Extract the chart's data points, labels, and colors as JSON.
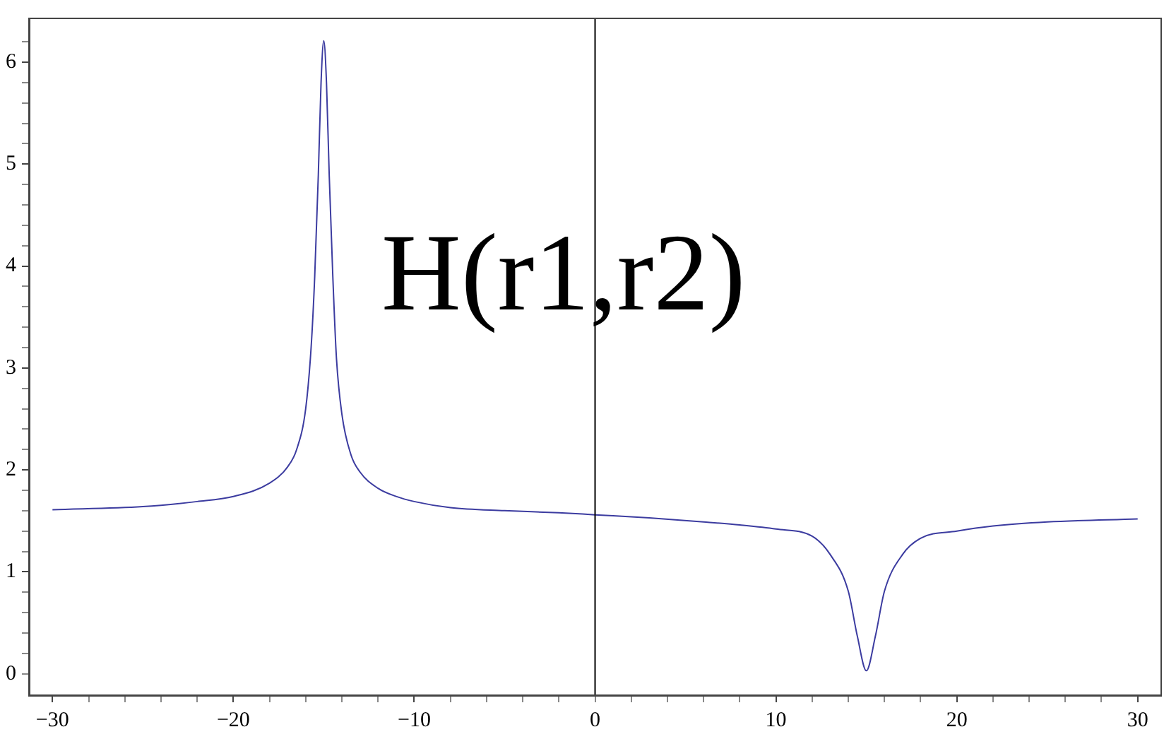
{
  "chart_data": {
    "type": "line",
    "annotations": [
      "H(r1,r2)"
    ],
    "x": [
      -30,
      -25,
      -22,
      -20,
      -18,
      -17,
      -16.5,
      -16,
      -15.7,
      -15.5,
      -15.3,
      -15.15,
      -15,
      -14.85,
      -14.7,
      -14.5,
      -14.3,
      -14,
      -13.5,
      -13,
      -12,
      -11,
      -10,
      -8,
      -5,
      -2,
      0,
      3,
      6,
      8,
      10,
      12,
      13,
      14,
      14.5,
      15,
      15.5,
      16,
      17,
      18,
      20,
      22,
      25,
      30
    ],
    "series": [
      {
        "color": "#3c3ca0",
        "values": [
          1.61,
          1.64,
          1.69,
          1.74,
          1.87,
          2.03,
          2.2,
          2.6,
          3.2,
          3.9,
          4.9,
          5.8,
          6.21,
          5.8,
          4.9,
          3.9,
          3.1,
          2.55,
          2.15,
          1.98,
          1.82,
          1.74,
          1.69,
          1.63,
          1.6,
          1.58,
          1.56,
          1.53,
          1.49,
          1.46,
          1.42,
          1.35,
          1.17,
          0.81,
          0.37,
          0.03,
          0.37,
          0.81,
          1.17,
          1.33,
          1.4,
          1.45,
          1.49,
          1.52
        ]
      }
    ],
    "xlim": [
      -31.3,
      31.3
    ],
    "ylim": [
      -0.21,
      6.43
    ],
    "xticks": [
      -30,
      {
        "value": -28,
        "label": null
      },
      {
        "value": -26,
        "label": null
      },
      {
        "value": -24,
        "label": null
      },
      {
        "value": -22,
        "label": null
      },
      -20,
      {
        "value": -18,
        "label": null
      },
      {
        "value": -16,
        "label": null
      },
      {
        "value": -14,
        "label": null
      },
      {
        "value": -12,
        "label": null
      },
      -10,
      {
        "value": -8,
        "label": null
      },
      {
        "value": -6,
        "label": null
      },
      {
        "value": -4,
        "label": null
      },
      {
        "value": -2,
        "label": null
      },
      0,
      {
        "value": 2,
        "label": null
      },
      {
        "value": 4,
        "label": null
      },
      {
        "value": 6,
        "label": null
      },
      {
        "value": 8,
        "label": null
      },
      10,
      {
        "value": 12,
        "label": null
      },
      {
        "value": 14,
        "label": null
      },
      {
        "value": 16,
        "label": null
      },
      {
        "value": 18,
        "label": null
      },
      20,
      {
        "value": 22,
        "label": null
      },
      {
        "value": 24,
        "label": null
      },
      {
        "value": 26,
        "label": null
      },
      {
        "value": 28,
        "label": null
      },
      30
    ],
    "yticks": [
      0,
      {
        "value": 0.2,
        "label": null
      },
      {
        "value": 0.4,
        "label": null
      },
      {
        "value": 0.6,
        "label": null
      },
      {
        "value": 0.8,
        "label": null
      },
      1,
      {
        "value": 1.2,
        "label": null
      },
      {
        "value": 1.4,
        "label": null
      },
      {
        "value": 1.6,
        "label": null
      },
      {
        "value": 1.8,
        "label": null
      },
      2,
      {
        "value": 2.2,
        "label": null
      },
      {
        "value": 2.4,
        "label": null
      },
      {
        "value": 2.6,
        "label": null
      },
      {
        "value": 2.8,
        "label": null
      },
      3,
      {
        "value": 3.2,
        "label": null
      },
      {
        "value": 3.4,
        "label": null
      },
      {
        "value": 3.6,
        "label": null
      },
      {
        "value": 3.8,
        "label": null
      },
      4,
      {
        "value": 4.2,
        "label": null
      },
      {
        "value": 4.4,
        "label": null
      },
      {
        "value": 4.6,
        "label": null
      },
      {
        "value": 4.8,
        "label": null
      },
      5,
      {
        "value": 5.2,
        "label": null
      },
      {
        "value": 5.4,
        "label": null
      },
      {
        "value": 5.6,
        "label": null
      },
      {
        "value": 5.8,
        "label": null
      },
      6,
      {
        "value": 6.2,
        "label": null
      }
    ],
    "ref_lines": [
      {
        "axis": "x",
        "value": 0,
        "color": "#000000"
      }
    ],
    "grid": false,
    "legend": false,
    "marker": "none",
    "line_style": "solid"
  }
}
